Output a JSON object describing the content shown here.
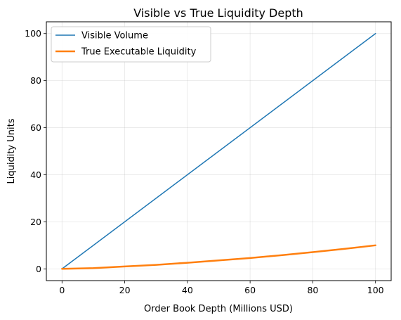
{
  "chart_data": {
    "type": "line",
    "title": "Visible vs True Liquidity Depth",
    "xlabel": "Order Book Depth (Millions USD)",
    "ylabel": "Liquidity Units",
    "xlim": [
      -5,
      105
    ],
    "ylim": [
      -5,
      105
    ],
    "xticks": [
      0,
      20,
      40,
      60,
      80,
      100
    ],
    "yticks": [
      0,
      20,
      40,
      60,
      80,
      100
    ],
    "grid": true,
    "legend_position": "top-left",
    "series": [
      {
        "name": "Visible Volume",
        "color": "#1f77b4",
        "x": [
          0,
          100
        ],
        "y": [
          0,
          100
        ]
      },
      {
        "name": "True Executable Liquidity",
        "color": "#ff7f0e",
        "x": [
          0,
          10,
          20,
          30,
          40,
          50,
          60,
          70,
          80,
          90,
          100
        ],
        "y": [
          0,
          0.3,
          1.0,
          1.7,
          2.6,
          3.6,
          4.6,
          5.8,
          7.1,
          8.5,
          10.0
        ]
      }
    ]
  }
}
